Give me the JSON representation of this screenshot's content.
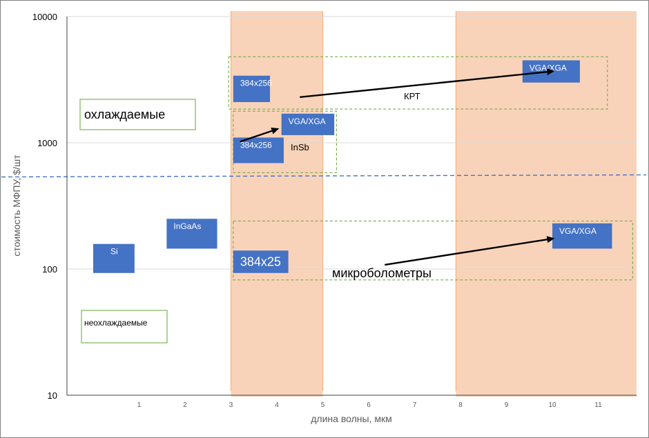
{
  "chart_data": {
    "type": "scatter",
    "xlabel": "длина волны, мкм",
    "ylabel": "стоимость МФПУ, $/шт",
    "y_scale": "log",
    "xlim": [
      0,
      11.9
    ],
    "ylim": [
      10,
      10000
    ],
    "x_ticks": [
      "1",
      "2",
      "3",
      "4",
      "5",
      "6",
      "7",
      "8",
      "9",
      "10",
      "11"
    ],
    "y_ticks": [
      "10",
      "100",
      "1000",
      "10000"
    ],
    "grid": "horizontal",
    "threshold_line": {
      "y": 550,
      "style": "dashed",
      "color": "#4472c4"
    },
    "spectral_bands": [
      {
        "x0": 3.0,
        "x1": 5.0,
        "color": "#f8cbad"
      },
      {
        "x0": 7.9,
        "x1": 11.9,
        "color": "#f8cbad"
      }
    ],
    "points": [
      {
        "label": "Si",
        "x": 0.45,
        "y": 120,
        "x0": 0.0,
        "x1": 0.9,
        "y0": 93,
        "y1": 158
      },
      {
        "label": "InGaAs",
        "x": 1.95,
        "y": 190,
        "x0": 1.6,
        "x1": 2.7,
        "y0": 145,
        "y1": 250
      },
      {
        "label": "384x256",
        "x": 3.5,
        "y": 2650,
        "x0": 3.05,
        "x1": 3.85,
        "y0": 2100,
        "y1": 3400
      },
      {
        "label": "VGA/XGA",
        "x": 10.0,
        "y": 3700,
        "x0": 9.35,
        "x1": 10.6,
        "y0": 3000,
        "y1": 4500
      },
      {
        "label": "384x256",
        "x": 3.6,
        "y": 870,
        "x0": 3.05,
        "x1": 4.15,
        "y0": 690,
        "y1": 1100
      },
      {
        "label": "VGA/XGA",
        "x": 4.5,
        "y": 1400,
        "x0": 4.1,
        "x1": 5.25,
        "y0": 1150,
        "y1": 1700
      },
      {
        "label": "384x25",
        "x": 3.5,
        "y": 115,
        "x0": 3.05,
        "x1": 4.25,
        "y0": 93,
        "y1": 140
      },
      {
        "label": "VGA/XGA",
        "x": 11.0,
        "y": 185,
        "x0": 10.0,
        "x1": 11.3,
        "y0": 145,
        "y1": 230
      }
    ],
    "arrows": [
      {
        "from": [
          4.5,
          2300
        ],
        "to": [
          10.05,
          3700
        ]
      },
      {
        "from": [
          3.2,
          1020
        ],
        "to": [
          4.05,
          1300
        ]
      },
      {
        "from": [
          6.35,
          108
        ],
        "to": [
          10.05,
          175
        ]
      }
    ],
    "groups": [
      {
        "label": "КРТ",
        "x0": 2.95,
        "x1": 11.2,
        "y0": 1850,
        "y1": 4800
      },
      {
        "label": "InSb",
        "x0": 3.05,
        "x1": 5.3,
        "y0": 580,
        "y1": 1780
      },
      {
        "label": "микроболометры",
        "x0": 3.05,
        "x1": 11.75,
        "y0": 82,
        "y1": 240
      }
    ],
    "annotations": [
      {
        "text": "охлаждаемые",
        "x": 0.0,
        "y": 1600
      },
      {
        "text": "неохлаждаемые",
        "x": 0.0,
        "y": 38
      }
    ]
  }
}
